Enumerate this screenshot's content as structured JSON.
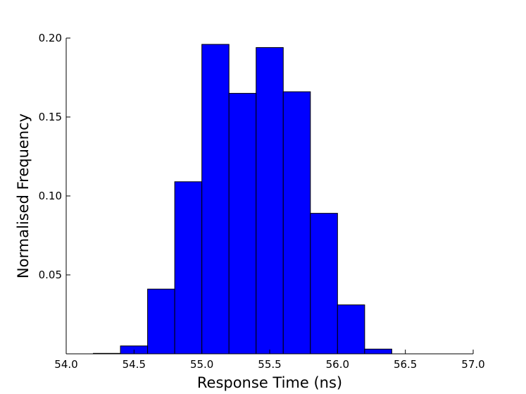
{
  "chart_data": {
    "type": "bar",
    "subtype": "histogram",
    "title": "",
    "xlabel": "Response Time (ns)",
    "ylabel": "Normalised Frequency",
    "xlim": [
      54.0,
      57.0
    ],
    "ylim": [
      0.0,
      0.2
    ],
    "xticks": [
      "54.0",
      "54.5",
      "55.0",
      "55.5",
      "56.0",
      "56.5",
      "57.0"
    ],
    "yticks": [
      "0.05",
      "0.10",
      "0.15",
      "0.20"
    ],
    "grid": false,
    "legend": false,
    "bar_color": "#0000ff",
    "edge_color": "#000000",
    "bins": [
      {
        "x0": 54.2,
        "x1": 54.4,
        "value": 0.0003
      },
      {
        "x0": 54.4,
        "x1": 54.6,
        "value": 0.005
      },
      {
        "x0": 54.6,
        "x1": 54.8,
        "value": 0.041
      },
      {
        "x0": 54.8,
        "x1": 55.0,
        "value": 0.109
      },
      {
        "x0": 55.0,
        "x1": 55.2,
        "value": 0.196
      },
      {
        "x0": 55.2,
        "x1": 55.4,
        "value": 0.165
      },
      {
        "x0": 55.4,
        "x1": 55.6,
        "value": 0.194
      },
      {
        "x0": 55.6,
        "x1": 55.8,
        "value": 0.166
      },
      {
        "x0": 55.8,
        "x1": 56.0,
        "value": 0.089
      },
      {
        "x0": 56.0,
        "x1": 56.2,
        "value": 0.031
      },
      {
        "x0": 56.2,
        "x1": 56.4,
        "value": 0.003
      }
    ]
  }
}
